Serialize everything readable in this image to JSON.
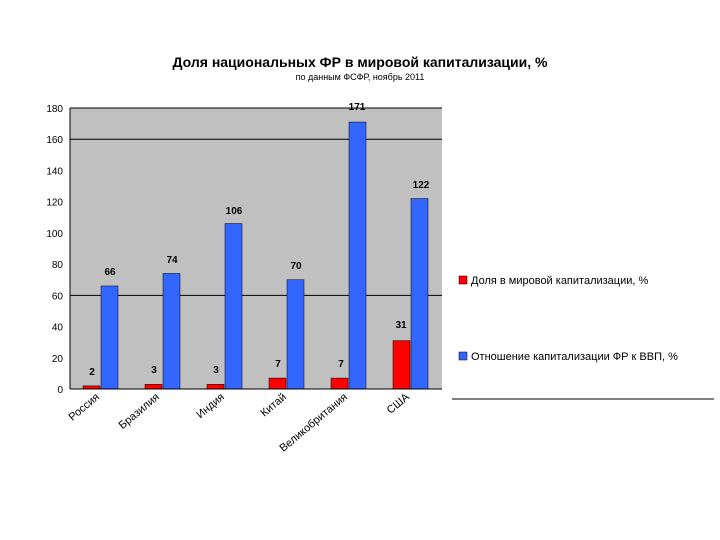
{
  "chart_data": {
    "type": "bar",
    "title": "Доля национальных ФР в мировой капитализации, %",
    "subtitle": "по данным ФСФР, ноябрь 2011",
    "categories": [
      "Россия",
      "Бразилия",
      "Индия",
      "Китай",
      "Великобритания",
      "США"
    ],
    "series": [
      {
        "name": "Доля в мировой капитализации, %",
        "color": "#ff0000",
        "values": [
          2,
          3,
          3,
          7,
          7,
          31
        ]
      },
      {
        "name": "Отношение капитализации ФР к ВВП, %",
        "color": "#3366ff",
        "values": [
          66,
          74,
          106,
          70,
          171,
          122
        ]
      }
    ],
    "y_ticks": [
      "0",
      "20",
      "40",
      "60",
      "80",
      "100",
      "120",
      "140",
      "160",
      "180"
    ],
    "ylim": [
      0,
      180
    ],
    "gridlines": [
      60,
      160,
      180
    ],
    "plot_background": "#c0c0c0",
    "legend_position": "right"
  }
}
